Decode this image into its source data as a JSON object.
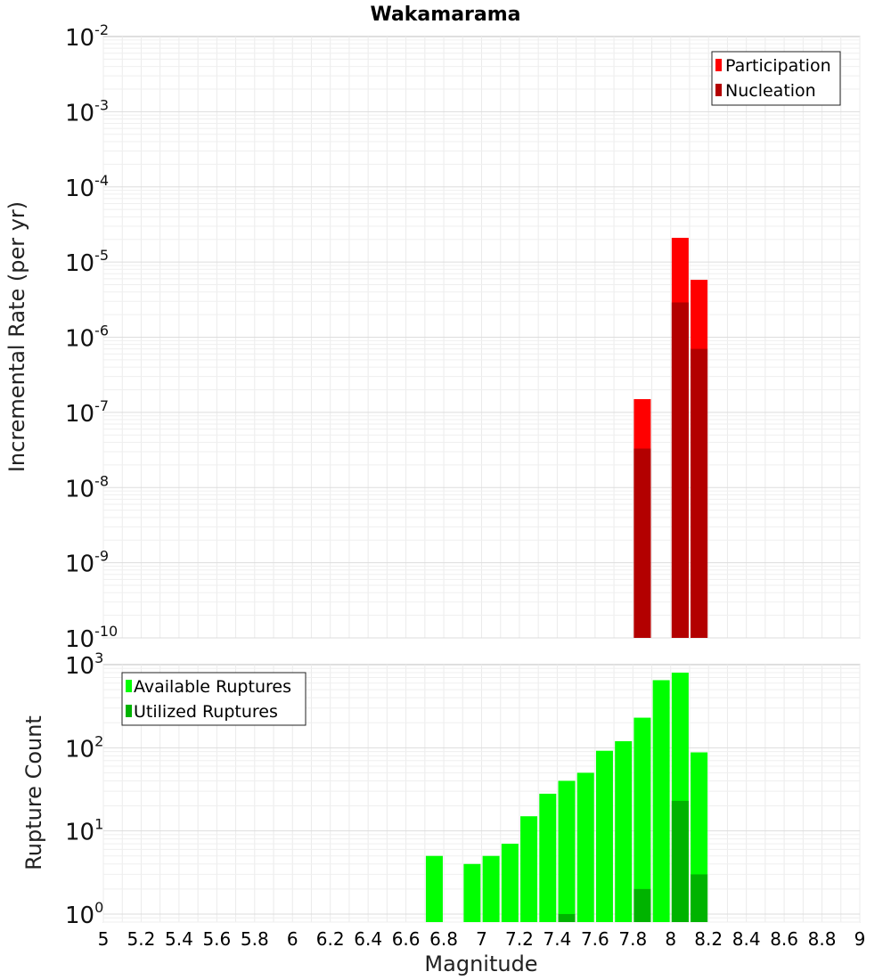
{
  "chart_data": [
    {
      "type": "bar",
      "title": "Wakamarama",
      "xlabel": "",
      "ylabel": "Incremental Rate (per yr)",
      "yscale": "log",
      "ylim": [
        1e-10,
        0.01
      ],
      "xlim": [
        5,
        9
      ],
      "grid": true,
      "legend_position": "top-right",
      "y_tick_labels": [
        {
          "base": "10",
          "exp": "-2"
        },
        {
          "base": "10",
          "exp": "-3"
        },
        {
          "base": "10",
          "exp": "-4"
        },
        {
          "base": "10",
          "exp": "-5"
        },
        {
          "base": "10",
          "exp": "-6"
        },
        {
          "base": "10",
          "exp": "-7"
        },
        {
          "base": "10",
          "exp": "-8"
        },
        {
          "base": "10",
          "exp": "-9"
        },
        {
          "base": "10",
          "exp": "-10"
        }
      ],
      "categories": [
        7.85,
        8.05,
        8.15
      ],
      "series": [
        {
          "name": "Participation",
          "color": "#ff0000",
          "values": [
            1.5e-07,
            2.1e-05,
            5.8e-06
          ]
        },
        {
          "name": "Nucleation",
          "color": "#b30000",
          "values": [
            3.3e-08,
            2.9e-06,
            7e-07
          ]
        }
      ]
    },
    {
      "type": "bar",
      "title": "",
      "xlabel": "Magnitude",
      "ylabel": "Rupture Count",
      "yscale": "log",
      "ylim": [
        0.8,
        1000
      ],
      "xlim": [
        5,
        9
      ],
      "grid": true,
      "legend_position": "top-left",
      "x_tick_labels": [
        "5",
        "5.2",
        "5.4",
        "5.6",
        "5.8",
        "6",
        "6.2",
        "6.4",
        "6.6",
        "6.8",
        "7",
        "7.2",
        "7.4",
        "7.6",
        "7.8",
        "8",
        "8.2",
        "8.4",
        "8.6",
        "8.8",
        "9"
      ],
      "y_tick_labels": [
        {
          "base": "10",
          "exp": "3"
        },
        {
          "base": "10",
          "exp": "2"
        },
        {
          "base": "10",
          "exp": "1"
        },
        {
          "base": "10",
          "exp": "0"
        }
      ],
      "categories": [
        6.75,
        6.95,
        7.05,
        7.15,
        7.25,
        7.35,
        7.45,
        7.55,
        7.65,
        7.75,
        7.85,
        7.95,
        8.05,
        8.15
      ],
      "series": [
        {
          "name": "Available Ruptures",
          "color": "#00ff00",
          "values": [
            5,
            4,
            5,
            7,
            15,
            28,
            40,
            50,
            92,
            120,
            230,
            650,
            800,
            88
          ]
        },
        {
          "name": "Utilized Ruptures",
          "color": "#00b300",
          "values": [
            0,
            0,
            0,
            0,
            0,
            0,
            1,
            0,
            0,
            0,
            2,
            0,
            23,
            3
          ]
        }
      ]
    }
  ]
}
